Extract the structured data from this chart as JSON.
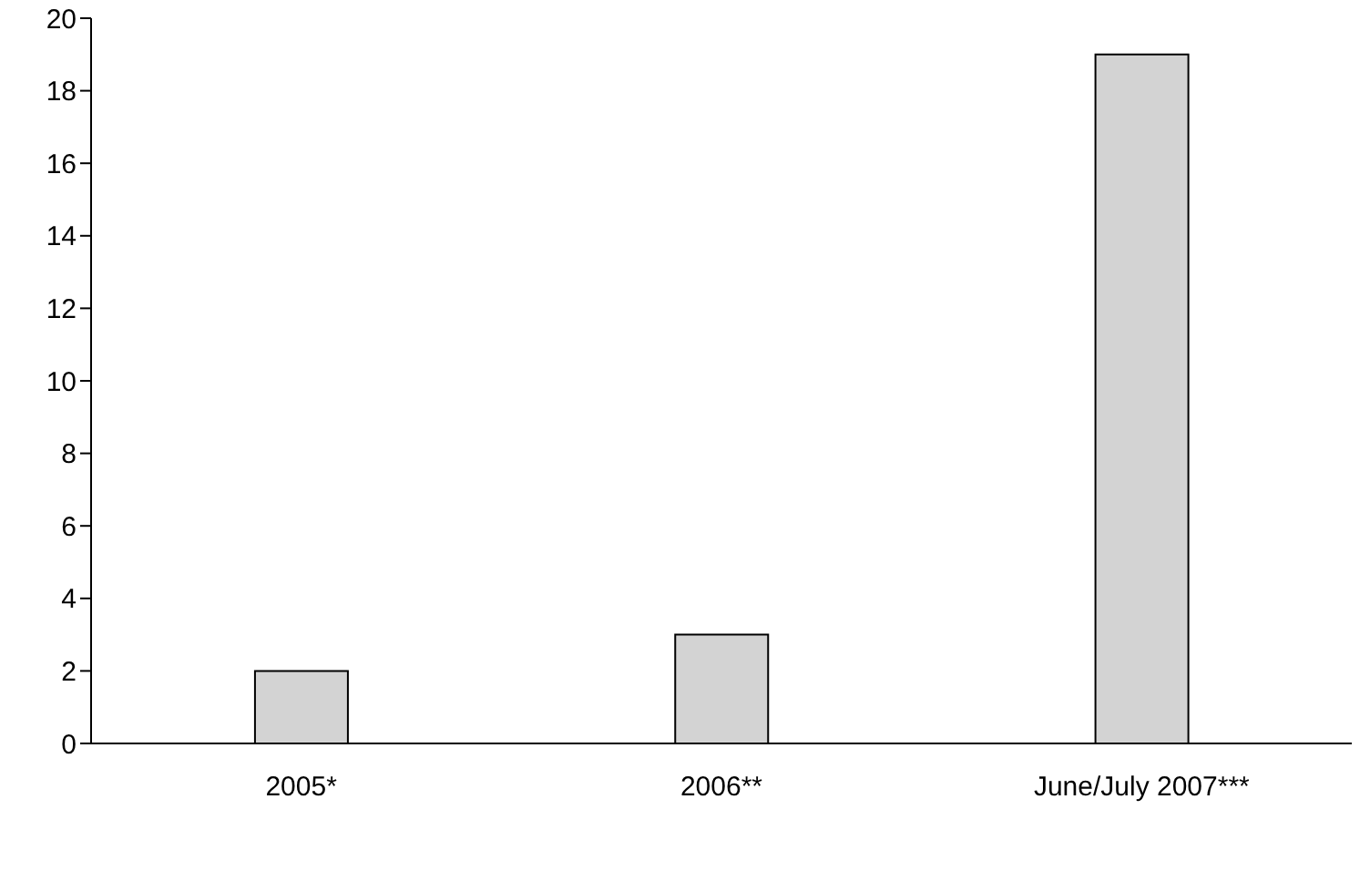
{
  "chart_data": {
    "type": "bar",
    "categories": [
      "2005*",
      "2006**",
      "June/July 2007***"
    ],
    "values": [
      2,
      3,
      19
    ],
    "color": "#d3d3d3",
    "ylim": [
      0,
      20
    ],
    "yticks": [
      0,
      2,
      4,
      6,
      8,
      10,
      12,
      14,
      16,
      18,
      20
    ],
    "grid": false,
    "legend": false
  }
}
